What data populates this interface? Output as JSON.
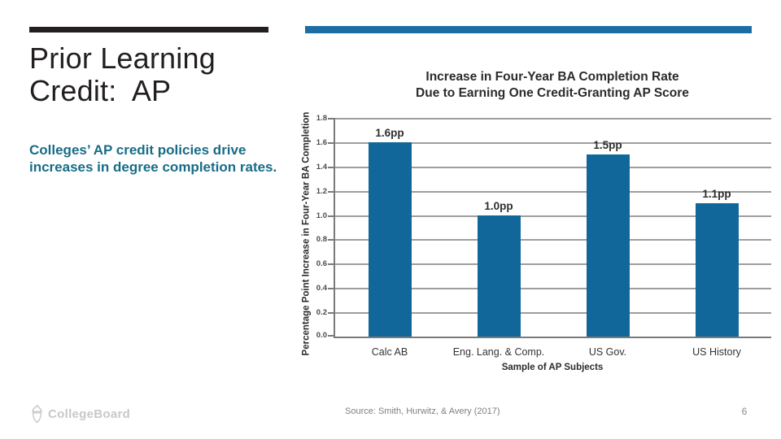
{
  "slide": {
    "title": "Prior Learning\nCredit:  AP",
    "subtitle": "Colleges’ AP credit policies drive\nincreases in degree completion rates.",
    "source": "Source: Smith, Hurwitz, & Avery (2017)",
    "page_number": "6",
    "logo_text": "CollegeBoard"
  },
  "colors": {
    "accent_bar_dark": "#231F20",
    "accent_bar_blue": "#1C6DA4",
    "subtitle_teal": "#186C87",
    "chart_bar_blue": "#11669A",
    "gridline_gray": "#9E9E9E",
    "axis_gray": "#7A7A7A",
    "footer_gray": "#8C8C8C",
    "logo_gray": "#C8C8C8"
  },
  "chart_data": {
    "type": "bar",
    "title": "Increase in Four-Year BA Completion Rate\nDue to Earning One Credit-Granting AP Score",
    "categories": [
      "Calc AB",
      "Eng. Lang. & Comp.",
      "US Gov.",
      "US History"
    ],
    "values": [
      1.6,
      1.0,
      1.5,
      1.1
    ],
    "data_labels": [
      "1.6pp",
      "1.0pp",
      "1.5pp",
      "1.1pp"
    ],
    "xlabel": "Sample of AP Subjects",
    "ylabel": "Percentage Point Increase in Four-Year BA Completion",
    "ylim": [
      0,
      1.8
    ],
    "ytick_step": 0.2,
    "ytick_labels": [
      "0.0",
      "0.2",
      "0.4",
      "0.6",
      "0.8",
      "1.0",
      "1.2",
      "1.4",
      "1.6",
      "1.8"
    ],
    "grid": true,
    "legend": false,
    "bar_color": "#11669A"
  }
}
